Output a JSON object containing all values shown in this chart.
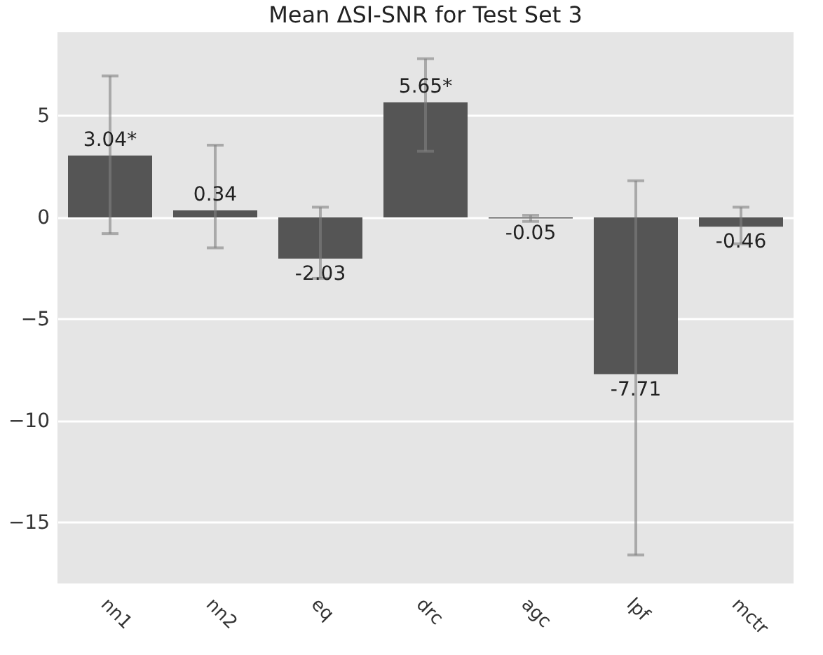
{
  "chart_data": {
    "type": "bar",
    "title": "Mean ΔSI-SNR for Test Set 3",
    "categories": [
      "nn1",
      "nn2",
      "eq",
      "drc",
      "agc",
      "lpf",
      "mctr"
    ],
    "values": [
      3.04,
      0.34,
      -2.03,
      5.65,
      -0.05,
      -7.71,
      -0.46
    ],
    "value_labels": [
      "3.04*",
      "0.34",
      "-2.03",
      "5.65*",
      "-0.05",
      "-7.71",
      "-0.46"
    ],
    "errors": [
      [
        -0.8,
        6.95
      ],
      [
        -1.5,
        3.55
      ],
      [
        -3.0,
        0.5
      ],
      [
        3.25,
        7.8
      ],
      [
        -0.2,
        0.1
      ],
      [
        -16.6,
        1.8
      ],
      [
        -1.3,
        0.5
      ]
    ],
    "color": "#555555",
    "ylim": [
      -18,
      9.1
    ],
    "yticks": [
      -15,
      -10,
      -5,
      0,
      5
    ],
    "grid": "y"
  }
}
